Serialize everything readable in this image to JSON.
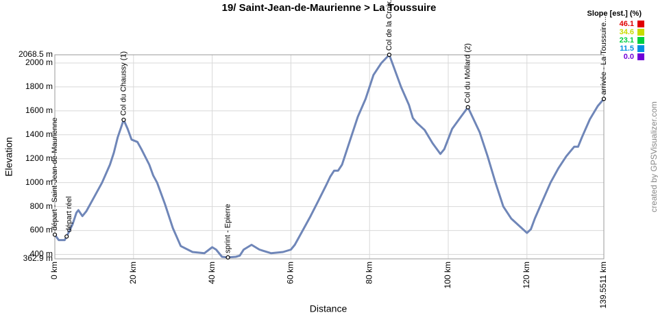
{
  "chart_data": {
    "type": "line",
    "title": "19/ Saint-Jean-de-Maurienne > La Toussuire",
    "x_label": "Distance",
    "y_label": "Elevation",
    "credit": "created by GPSVisualizer.com",
    "xlim": [
      0,
      139.5511
    ],
    "ylim": [
      362.9,
      2068.5
    ],
    "xticks": [
      {
        "value": 0,
        "label": "0 km"
      },
      {
        "value": 20,
        "label": "20 km"
      },
      {
        "value": 40,
        "label": "40 km"
      },
      {
        "value": 60,
        "label": "60 km"
      },
      {
        "value": 80,
        "label": "80 km"
      },
      {
        "value": 100,
        "label": "100 km"
      },
      {
        "value": 120,
        "label": "120 km"
      },
      {
        "value": 139.5511,
        "label": "139.5511 km"
      }
    ],
    "yticks": [
      {
        "value": 362.9,
        "label": "362.9 m"
      },
      {
        "value": 400,
        "label": "400 m"
      },
      {
        "value": 600,
        "label": "600 m"
      },
      {
        "value": 800,
        "label": "800 m"
      },
      {
        "value": 1000,
        "label": "1000 m"
      },
      {
        "value": 1200,
        "label": "1200 m"
      },
      {
        "value": 1400,
        "label": "1400 m"
      },
      {
        "value": 1600,
        "label": "1600 m"
      },
      {
        "value": 1800,
        "label": "1800 m"
      },
      {
        "value": 2000,
        "label": "2000 m"
      },
      {
        "value": 2068.5,
        "label": "2068.5 m"
      }
    ],
    "grid": true,
    "series": [
      {
        "name": "Elevation",
        "color": "#6f86b8",
        "x": [
          0,
          1,
          2.5,
          3,
          4.5,
          5.5,
          6,
          7,
          8,
          10,
          12,
          14,
          15,
          16,
          17.5,
          18.5,
          19.5,
          21,
          22,
          24,
          25,
          26,
          28,
          30,
          32,
          35,
          38,
          40,
          41,
          42.5,
          44,
          46,
          47,
          48,
          50,
          52,
          53,
          55,
          58,
          60,
          61,
          63,
          65,
          67,
          69,
          70,
          71,
          72,
          73,
          75,
          77,
          79,
          81,
          83,
          85,
          86,
          88,
          90,
          91,
          92,
          94,
          96,
          98,
          99,
          101,
          103,
          105,
          106,
          108,
          110,
          112,
          114,
          116,
          118,
          120,
          121,
          122,
          124,
          126,
          128,
          130,
          132,
          133,
          134,
          136,
          138,
          139.5511
        ],
        "values": [
          565,
          520,
          520,
          550,
          650,
          750,
          770,
          720,
          760,
          880,
          1000,
          1150,
          1250,
          1380,
          1525,
          1450,
          1360,
          1340,
          1280,
          1150,
          1060,
          1000,
          820,
          620,
          470,
          420,
          410,
          460,
          440,
          380,
          375,
          380,
          390,
          440,
          480,
          440,
          430,
          410,
          420,
          440,
          480,
          600,
          720,
          850,
          980,
          1050,
          1100,
          1100,
          1150,
          1350,
          1550,
          1700,
          1900,
          2000,
          2068.5,
          1980,
          1800,
          1650,
          1540,
          1500,
          1440,
          1330,
          1240,
          1280,
          1450,
          1540,
          1630,
          1560,
          1420,
          1220,
          1000,
          800,
          700,
          640,
          580,
          610,
          700,
          850,
          1000,
          1120,
          1220,
          1300,
          1300,
          1380,
          1530,
          1640,
          1700
        ]
      }
    ],
    "waypoints": [
      {
        "label": "départ - Saint-Jean-de-Maurienne",
        "x": 0,
        "y": 565
      },
      {
        "label": "départ réel",
        "x": 3,
        "y": 550
      },
      {
        "label": "Col du Chaussy (1)",
        "x": 17.5,
        "y": 1525
      },
      {
        "label": "sprint - Epierre",
        "x": 44,
        "y": 375
      },
      {
        "label": "Col de la Croix...",
        "x": 85,
        "y": 2068.5
      },
      {
        "label": "Col du Mollard (2)",
        "x": 105,
        "y": 1630
      },
      {
        "label": "arrivée - La Toussuire...",
        "x": 139.5511,
        "y": 1700
      }
    ],
    "slope_legend": {
      "title": "Slope [est.] (%)",
      "items": [
        {
          "value": 46.1,
          "color": "#e00000"
        },
        {
          "value": 34.6,
          "color": "#c8dc00"
        },
        {
          "value": 23.1,
          "color": "#00d040"
        },
        {
          "value": 11.5,
          "color": "#0090e0"
        },
        {
          "value": {
            "value": 0,
            "label": "0.0"
          },
          "color": "#7000d8"
        }
      ]
    }
  }
}
